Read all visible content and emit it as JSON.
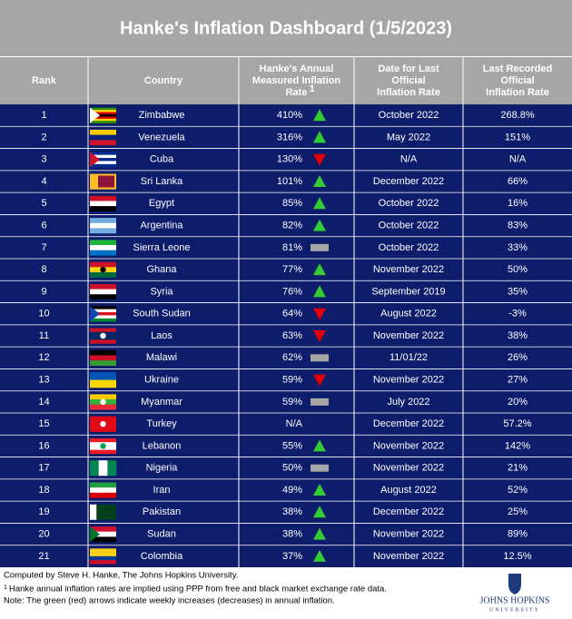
{
  "header": {
    "title": "Hanke's Inflation Dashboard (1/5/2023)"
  },
  "table": {
    "columns": [
      {
        "label": "Rank"
      },
      {
        "label": "Country"
      },
      {
        "label": "Hanke's Annual Measured Inflation Rate",
        "note": "1"
      },
      {
        "label": "Date for Last Official Inflation Rate"
      },
      {
        "label": "Last Recorded Official Inflation Rate"
      }
    ],
    "rows": [
      [
        "1",
        "Zimbabwe",
        "410%",
        "October 2022",
        "268.8%"
      ],
      [
        "2",
        "Venezuela",
        "316%",
        "May 2022",
        "151%"
      ],
      [
        "3",
        "Cuba",
        "130%",
        "N/A",
        "N/A"
      ],
      [
        "4",
        "Sri Lanka",
        "101%",
        "December 2022",
        "66%"
      ],
      [
        "5",
        "Egypt",
        "85%",
        "October 2022",
        "16%"
      ],
      [
        "6",
        "Argentina",
        "82%",
        "October 2022",
        "83%"
      ],
      [
        "7",
        "Sierra Leone",
        "81%",
        "October 2022",
        "33%"
      ],
      [
        "8",
        "Ghana",
        "77%",
        "November 2022",
        "50%"
      ],
      [
        "9",
        "Syria",
        "76%",
        "September 2019",
        "35%"
      ],
      [
        "10",
        "South Sudan",
        "64%",
        "August 2022",
        "-3%"
      ],
      [
        "11",
        "Laos",
        "63%",
        "November 2022",
        "38%"
      ],
      [
        "12",
        "Malawi",
        "62%",
        "11/01/22",
        "26%"
      ],
      [
        "13",
        "Ukraine",
        "59%",
        "November 2022",
        "27%"
      ],
      [
        "14",
        "Myanmar",
        "59%",
        "July 2022",
        "20%"
      ],
      [
        "15",
        "Turkey",
        "N/A",
        "December 2022",
        "57.2%"
      ],
      [
        "16",
        "Lebanon",
        "55%",
        "November 2022",
        "142%"
      ],
      [
        "17",
        "Nigeria",
        "50%",
        "November 2022",
        "21%"
      ],
      [
        "18",
        "Iran",
        "49%",
        "August 2022",
        "52%"
      ],
      [
        "19",
        "Pakistan",
        "38%",
        "December 2022",
        "25%"
      ],
      [
        "20",
        "Sudan",
        "38%",
        "November 2022",
        "89%"
      ],
      [
        "21",
        "Colombia",
        "37%",
        "November 2022",
        "12.5%"
      ]
    ],
    "trend": [
      "up",
      "up",
      "down",
      "up",
      "up",
      "up",
      "flat",
      "up",
      "up",
      "down",
      "down",
      "flat",
      "down",
      "flat",
      null,
      "up",
      "flat",
      "up",
      "up",
      "up",
      "up"
    ]
  },
  "footer": {
    "credit": "Computed by Steve H. Hanke, The Johns Hopkins University.",
    "footnotes": [
      {
        "mark": "1",
        "text": "Hanke annual inflation rates are implied using PPP from free and black market exchange rate data."
      }
    ],
    "note": "Note: The green (red) arrows indicate weekly increases (decreases) in annual inflation."
  },
  "logo": {
    "name": "JOHNS HOPKINS",
    "sub": "UNIVERSITY"
  }
}
